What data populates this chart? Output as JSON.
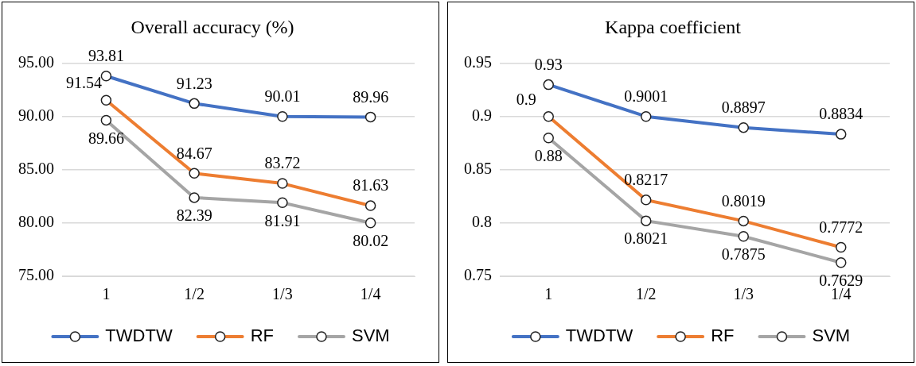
{
  "chart_data": [
    {
      "type": "line",
      "title": "Overall accuracy (%)",
      "categories": [
        "1",
        "1/2",
        "1/3",
        "1/4"
      ],
      "series": [
        {
          "name": "TWDTW",
          "color": "#4472c4",
          "values": [
            93.81,
            91.23,
            90.01,
            89.96
          ]
        },
        {
          "name": "RF",
          "color": "#ed7d31",
          "values": [
            91.54,
            84.67,
            83.72,
            81.63
          ]
        },
        {
          "name": "SVM",
          "color": "#a5a5a5",
          "values": [
            89.66,
            82.39,
            81.91,
            80.02
          ]
        }
      ],
      "ylim": [
        75,
        95
      ],
      "yticks": [
        {
          "value": 75,
          "label": "75.00"
        },
        {
          "value": 80,
          "label": "80.00"
        },
        {
          "value": 85,
          "label": "85.00"
        },
        {
          "value": 90,
          "label": "90.00"
        },
        {
          "value": 95,
          "label": "95.00"
        }
      ],
      "grid": "y",
      "legend": "bottom",
      "marker": "circle",
      "line_style": "solid",
      "data_labels": true
    },
    {
      "type": "line",
      "title": "Kappa coefficient",
      "categories": [
        "1",
        "1/2",
        "1/3",
        "1/4"
      ],
      "series": [
        {
          "name": "TWDTW",
          "color": "#4472c4",
          "values": [
            0.93,
            0.9001,
            0.8897,
            0.8834
          ]
        },
        {
          "name": "RF",
          "color": "#ed7d31",
          "values": [
            0.9,
            0.8217,
            0.8019,
            0.7772
          ]
        },
        {
          "name": "SVM",
          "color": "#a5a5a5",
          "values": [
            0.88,
            0.8021,
            0.7875,
            0.7629
          ]
        }
      ],
      "ylim": [
        0.75,
        0.95
      ],
      "yticks": [
        0.75,
        0.8,
        0.85,
        0.9,
        0.95
      ],
      "grid": "y",
      "legend": "bottom",
      "marker": "circle",
      "line_style": "solid",
      "data_labels": true
    }
  ]
}
